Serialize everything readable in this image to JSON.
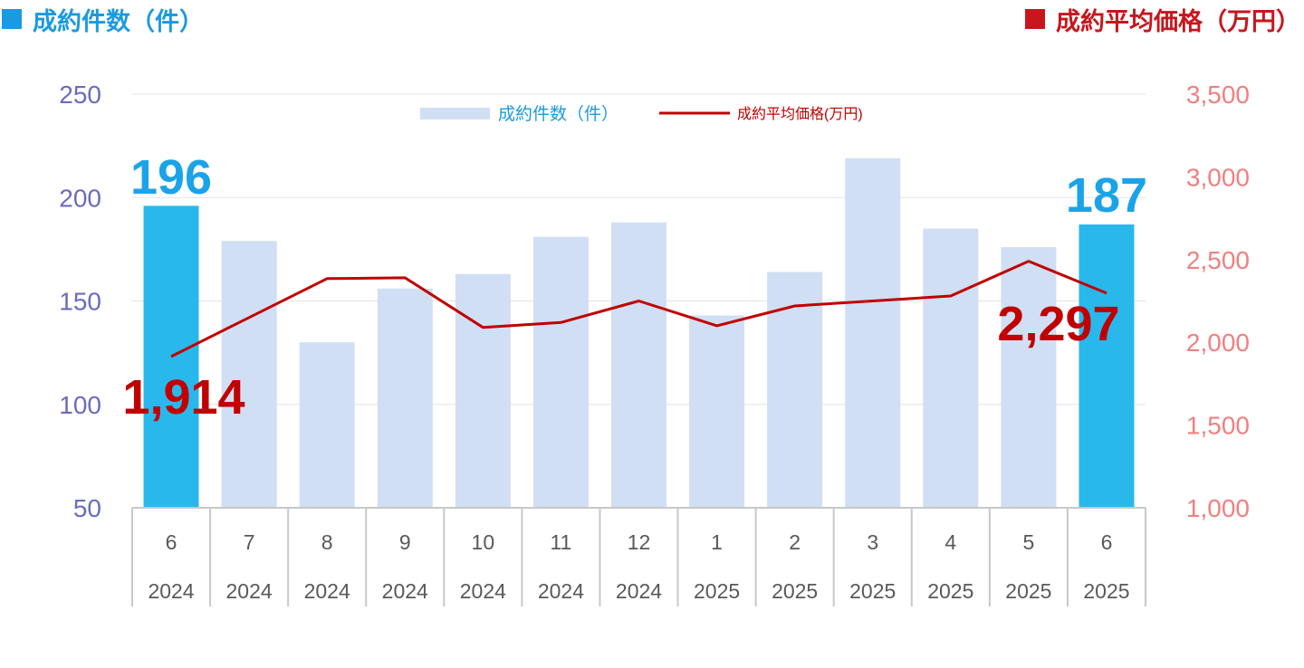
{
  "headers": {
    "left": "成約件数（件）",
    "right": "成約平均価格（万円）"
  },
  "colors": {
    "bar_default": "#d0dff4",
    "bar_highlight": "#29b8ec",
    "line": "#c00000",
    "left_axis": "#6b6bbf",
    "right_axis": "#f08080",
    "header_left": "#1a9ae0",
    "header_right": "#c8161d",
    "label_count": "#1aa3e8",
    "label_price": "#c00000"
  },
  "chart_data": {
    "type": "bar",
    "categories": [
      {
        "month": "6",
        "year": "2024"
      },
      {
        "month": "7",
        "year": "2024"
      },
      {
        "month": "8",
        "year": "2024"
      },
      {
        "month": "9",
        "year": "2024"
      },
      {
        "month": "10",
        "year": "2024"
      },
      {
        "month": "11",
        "year": "2024"
      },
      {
        "month": "12",
        "year": "2024"
      },
      {
        "month": "1",
        "year": "2025"
      },
      {
        "month": "2",
        "year": "2025"
      },
      {
        "month": "3",
        "year": "2025"
      },
      {
        "month": "4",
        "year": "2025"
      },
      {
        "month": "5",
        "year": "2025"
      },
      {
        "month": "6",
        "year": "2025"
      }
    ],
    "series": [
      {
        "name": "成約件数（件）",
        "type": "bar",
        "axis": "left",
        "values": [
          196,
          179,
          130,
          156,
          163,
          181,
          188,
          143,
          164,
          219,
          185,
          176,
          187
        ],
        "highlight_index": [
          0,
          12
        ]
      },
      {
        "name": "成約平均価格(万円)",
        "type": "line",
        "axis": "right",
        "values": [
          1914,
          2150,
          2385,
          2390,
          2090,
          2120,
          2250,
          2100,
          2220,
          2250,
          2280,
          2490,
          2297
        ]
      }
    ],
    "left_axis": {
      "min": 50,
      "max": 250,
      "ticks": [
        "50",
        "100",
        "150",
        "200",
        "250"
      ]
    },
    "right_axis": {
      "min": 1000,
      "max": 3500,
      "ticks": [
        "1,000",
        "1,500",
        "2,000",
        "2,500",
        "3,000",
        "3,500"
      ]
    },
    "grid": true,
    "legend": {
      "position": "top-center",
      "bar_label": "成約件数（件）",
      "line_label": "成約平均価格(万円)"
    },
    "annotations": {
      "count_first": "196",
      "count_last": "187",
      "price_first": "1,914",
      "price_last": "2,297"
    }
  }
}
